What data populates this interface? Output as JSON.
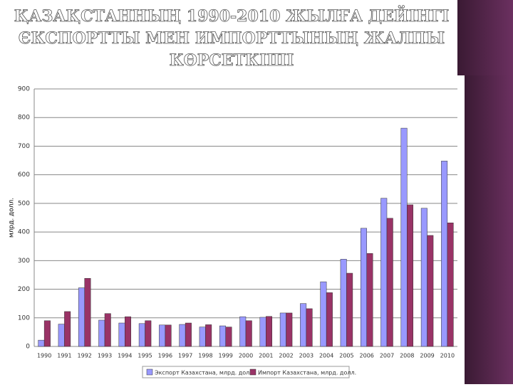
{
  "chart_data": {
    "type": "bar",
    "title": [
      "ҚАЗАҚСТАННЫҢ 1990-2010 ЖЫЛҒА ДЕЙІНГІ",
      "ЄКСПОРТТЫ МЕН ИМПОРТТЫНЫҢ ЖАЛПЫ",
      "КӨРСЕТКІШІ"
    ],
    "y_label": "млрд. долл.",
    "categories": [
      "1990",
      "1991",
      "1992",
      "1993",
      "1994",
      "1995",
      "1996",
      "1997",
      "1998",
      "1999",
      "2000",
      "2001",
      "2002",
      "2003",
      "2004",
      "2005",
      "2006",
      "2007",
      "2008",
      "2009",
      "2010"
    ],
    "series": [
      {
        "name": "Экспорт Казахстана, млрд. долл.",
        "color": "#9999ff",
        "values": [
          22,
          78,
          205,
          92,
          82,
          80,
          75,
          77,
          68,
          72,
          104,
          102,
          117,
          150,
          226,
          305,
          413,
          518,
          763,
          483,
          648
        ]
      },
      {
        "name": "Импорт Казахстана, млрд. долл.",
        "color": "#993366",
        "values": [
          90,
          122,
          238,
          115,
          104,
          90,
          75,
          82,
          76,
          68,
          90,
          105,
          117,
          132,
          188,
          256,
          325,
          448,
          495,
          388,
          432
        ]
      }
    ],
    "ylim": [
      0,
      900
    ],
    "yticks": [
      0,
      100,
      200,
      300,
      400,
      500,
      600,
      700,
      800,
      900
    ],
    "grid": true
  }
}
